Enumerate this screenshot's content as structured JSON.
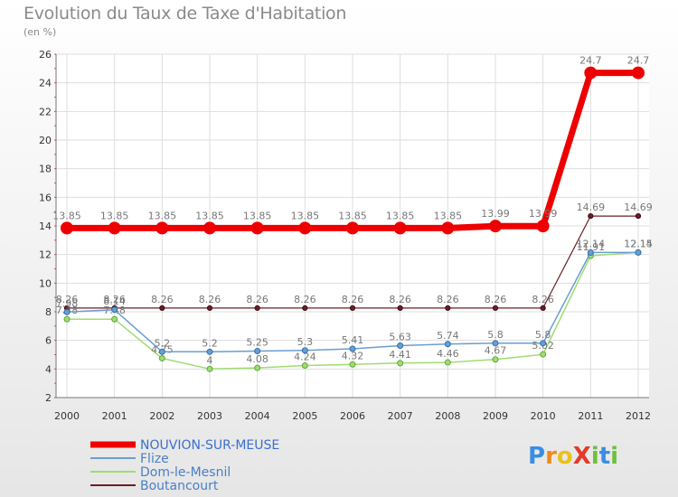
{
  "title": "Evolution du Taux de Taxe d'Habitation",
  "subtitle": "(en %)",
  "logo": {
    "text": "ProXiti",
    "letters": [
      "P",
      "r",
      "o",
      "X",
      "i",
      "t",
      "i"
    ],
    "colors": [
      "#3a8ee0",
      "#f08a1c",
      "#e8c21a",
      "#e23a2a",
      "#6cc13a",
      "#3a8ee0",
      "#6cc13a"
    ]
  },
  "chart_data": {
    "type": "line",
    "x": [
      "2000",
      "2001",
      "2002",
      "2003",
      "2004",
      "2005",
      "2006",
      "2007",
      "2008",
      "2009",
      "2010",
      "2011",
      "2012"
    ],
    "ylim": [
      2,
      26
    ],
    "yticks": [
      2,
      4,
      6,
      8,
      10,
      12,
      14,
      16,
      18,
      20,
      22,
      24,
      26
    ],
    "grid": true,
    "legend": "bottom-left",
    "series": [
      {
        "name": "NOUVION-SUR-MEUSE",
        "color": "#ee0000",
        "values": [
          13.85,
          13.85,
          13.85,
          13.85,
          13.85,
          13.85,
          13.85,
          13.85,
          13.85,
          13.99,
          13.99,
          24.7,
          24.7
        ],
        "labels": [
          "13.85",
          "13.85",
          "13.85",
          "13.85",
          "13.85",
          "13.85",
          "13.85",
          "13.85",
          "13.85",
          "13.99",
          "13.99",
          "24.7",
          "24.7"
        ]
      },
      {
        "name": "Flize",
        "color": "#6a9ed0",
        "values": [
          7.98,
          8.14,
          5.2,
          5.2,
          5.25,
          5.3,
          5.41,
          5.63,
          5.74,
          5.8,
          5.8,
          12.14,
          12.14
        ],
        "labels": [
          "7.98",
          "8.14",
          "5.2",
          "5.2",
          "5.25",
          "5.3",
          "5.41",
          "5.63",
          "5.74",
          "5.8",
          "5.8",
          "12.14",
          "12.14"
        ]
      },
      {
        "name": "Dom-le-Mesnil",
        "color": "#9fdc73",
        "values": [
          7.48,
          7.48,
          4.75,
          4,
          4.08,
          4.24,
          4.32,
          4.41,
          4.46,
          4.67,
          5.02,
          11.91,
          12.15
        ],
        "labels": [
          "7.48",
          "7.48",
          "4.75",
          "4",
          "4.08",
          "4.24",
          "4.32",
          "4.41",
          "4.46",
          "4.67",
          "5.02",
          "11.91",
          "12.15"
        ]
      },
      {
        "name": "Boutancourt",
        "color": "#6b1e26",
        "values": [
          8.26,
          8.26,
          8.26,
          8.26,
          8.26,
          8.26,
          8.26,
          8.26,
          8.26,
          8.26,
          8.26,
          14.69,
          14.69
        ],
        "labels": [
          "8.26",
          "8.26",
          "8.26",
          "8.26",
          "8.26",
          "8.26",
          "8.26",
          "8.26",
          "8.26",
          "8.26",
          "8.26",
          "14.69",
          "14.69"
        ]
      }
    ]
  }
}
